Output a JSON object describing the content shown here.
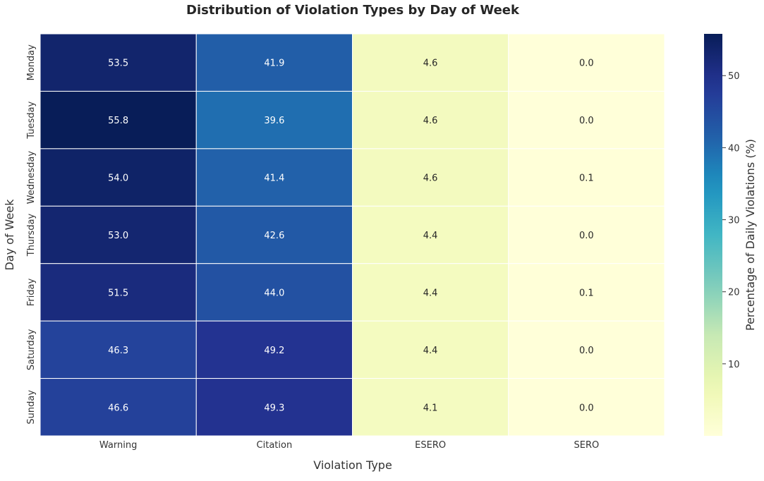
{
  "chart_data": {
    "type": "heatmap",
    "title": "Distribution of Violation Types by Day of Week",
    "xlabel": "Violation Type",
    "ylabel": "Day of Week",
    "x_categories": [
      "Warning",
      "Citation",
      "ESERO",
      "SERO"
    ],
    "y_categories": [
      "Monday",
      "Tuesday",
      "Wednesday",
      "Thursday",
      "Friday",
      "Saturday",
      "Sunday"
    ],
    "values": [
      [
        53.5,
        41.9,
        4.6,
        0.0
      ],
      [
        55.8,
        39.6,
        4.6,
        0.0
      ],
      [
        54.0,
        41.4,
        4.6,
        0.1
      ],
      [
        53.0,
        42.6,
        4.4,
        0.0
      ],
      [
        51.5,
        44.0,
        4.4,
        0.1
      ],
      [
        46.3,
        49.2,
        4.4,
        0.0
      ],
      [
        46.6,
        49.3,
        4.1,
        0.0
      ]
    ],
    "colorbar": {
      "label": "Percentage of Daily Violations (%)",
      "ticks": [
        10,
        20,
        30,
        40,
        50
      ],
      "range": [
        0,
        55.8
      ],
      "colormap": "YlGnBu"
    }
  }
}
